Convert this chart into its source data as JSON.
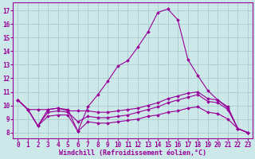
{
  "xlabel": "Windchill (Refroidissement éolien,°C)",
  "background_color": "#cce8e8",
  "grid_color": "#aacccc",
  "line_color": "#990099",
  "x_ticks": [
    0,
    1,
    2,
    3,
    4,
    5,
    6,
    7,
    8,
    9,
    10,
    11,
    12,
    13,
    14,
    15,
    16,
    17,
    18,
    19,
    20,
    21,
    22,
    23
  ],
  "y_ticks": [
    8,
    9,
    10,
    11,
    12,
    13,
    14,
    15,
    16,
    17
  ],
  "ylim": [
    7.6,
    17.6
  ],
  "xlim": [
    -0.5,
    23.5
  ],
  "series": [
    {
      "x": [
        0,
        1,
        2,
        3,
        4,
        5,
        6,
        7,
        8,
        9,
        10,
        11,
        12,
        13,
        14,
        15,
        16,
        17,
        18,
        19,
        20,
        21,
        22,
        23
      ],
      "y": [
        10.4,
        9.7,
        8.5,
        9.7,
        9.8,
        9.7,
        8.1,
        9.9,
        10.8,
        11.8,
        12.9,
        13.3,
        14.3,
        15.4,
        16.85,
        17.1,
        16.3,
        13.4,
        12.2,
        11.1,
        10.4,
        9.9,
        8.3,
        8.0
      ]
    },
    {
      "x": [
        0,
        1,
        2,
        3,
        4,
        5,
        6,
        7,
        8,
        9,
        10,
        11,
        12,
        13,
        14,
        15,
        16,
        17,
        18,
        19,
        20,
        21,
        22,
        23
      ],
      "y": [
        10.4,
        9.7,
        9.7,
        9.7,
        9.8,
        9.6,
        9.6,
        9.6,
        9.5,
        9.5,
        9.6,
        9.7,
        9.8,
        10.0,
        10.2,
        10.5,
        10.7,
        10.9,
        11.0,
        10.5,
        10.4,
        9.8,
        8.3,
        8.0
      ]
    },
    {
      "x": [
        0,
        1,
        2,
        3,
        4,
        5,
        6,
        7,
        8,
        9,
        10,
        11,
        12,
        13,
        14,
        15,
        16,
        17,
        18,
        19,
        20,
        21,
        22,
        23
      ],
      "y": [
        10.4,
        9.7,
        8.5,
        9.5,
        9.6,
        9.5,
        8.8,
        9.2,
        9.1,
        9.1,
        9.2,
        9.3,
        9.5,
        9.7,
        9.9,
        10.2,
        10.4,
        10.6,
        10.8,
        10.3,
        10.2,
        9.7,
        8.3,
        8.0
      ]
    },
    {
      "x": [
        0,
        1,
        2,
        3,
        4,
        5,
        6,
        7,
        8,
        9,
        10,
        11,
        12,
        13,
        14,
        15,
        16,
        17,
        18,
        19,
        20,
        21,
        22,
        23
      ],
      "y": [
        10.4,
        9.7,
        8.5,
        9.2,
        9.3,
        9.3,
        8.1,
        8.8,
        8.7,
        8.7,
        8.8,
        8.9,
        9.0,
        9.2,
        9.3,
        9.5,
        9.6,
        9.8,
        9.9,
        9.5,
        9.4,
        9.0,
        8.3,
        8.0
      ]
    }
  ]
}
